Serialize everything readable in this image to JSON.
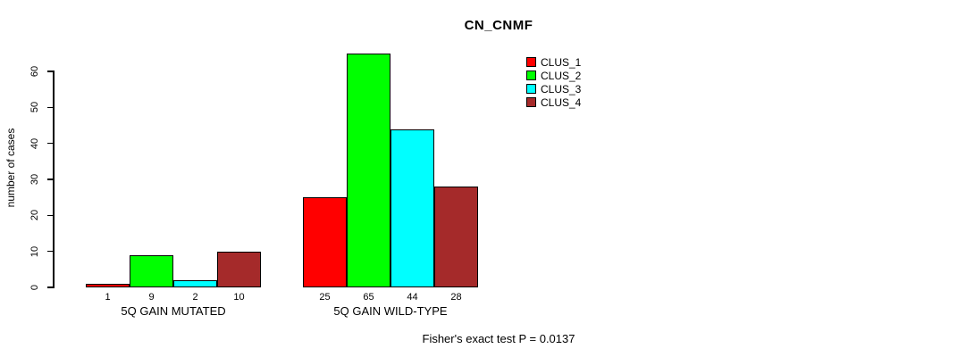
{
  "chart_data": {
    "type": "bar",
    "title": "CN_CNMF",
    "xlabel": "",
    "ylabel": "number of cases",
    "ylim": [
      0,
      60
    ],
    "yticks": [
      0,
      10,
      20,
      30,
      40,
      50,
      60
    ],
    "grid": false,
    "categories": [
      "5Q GAIN MUTATED",
      "5Q GAIN WILD-TYPE"
    ],
    "series": [
      {
        "name": "CLUS_1",
        "color": "#ff0000",
        "values": [
          1,
          25
        ]
      },
      {
        "name": "CLUS_2",
        "color": "#00ff00",
        "values": [
          9,
          65
        ]
      },
      {
        "name": "CLUS_3",
        "color": "#00ffff",
        "values": [
          2,
          44
        ]
      },
      {
        "name": "CLUS_4",
        "color": "#a52a2a",
        "values": [
          10,
          28
        ]
      }
    ],
    "bar_value_labels": [
      [
        1,
        9,
        2,
        10
      ],
      [
        25,
        65,
        44,
        28
      ]
    ],
    "legend": {
      "position": "top-right",
      "entries": [
        "CLUS_1",
        "CLUS_2",
        "CLUS_3",
        "CLUS_4"
      ]
    },
    "annotation": "Fisher's exact test P = 0.0137"
  }
}
